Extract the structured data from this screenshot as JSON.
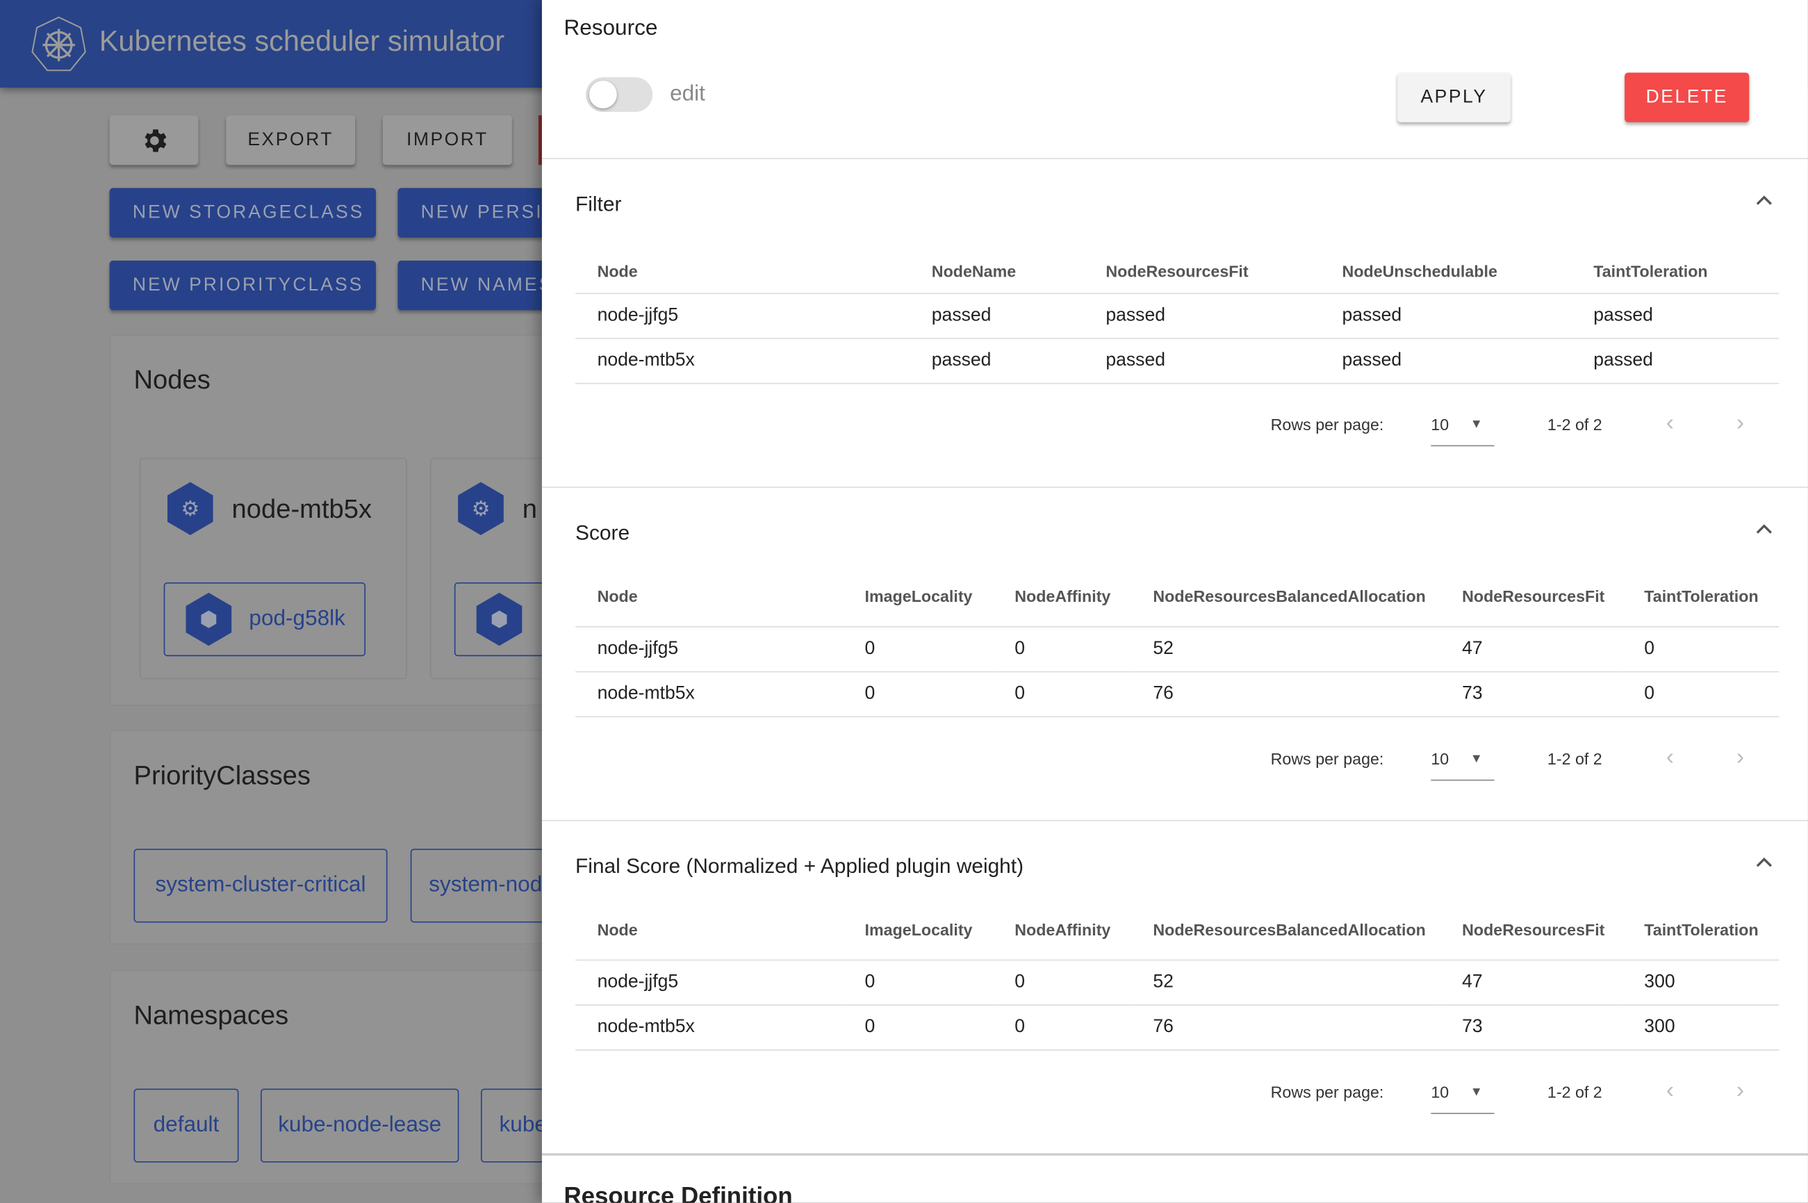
{
  "app": {
    "title": "Kubernetes scheduler simulator"
  },
  "toolbar": {
    "settings_icon": "gear-icon",
    "export": "EXPORT",
    "import": "IMPORT"
  },
  "create_buttons": [
    "NEW STORAGECLASS",
    "NEW PERSIS",
    "NEW PRIORITYCLASS",
    "NEW NAMES"
  ],
  "nodes": {
    "title": "Nodes",
    "items": [
      {
        "name": "node-mtb5x",
        "pods": [
          "pod-g58lk"
        ]
      },
      {
        "name": "n",
        "pods": [
          ""
        ]
      }
    ]
  },
  "priority_classes": {
    "title": "PriorityClasses",
    "items": [
      "system-cluster-critical",
      "system-nod"
    ]
  },
  "namespaces": {
    "title": "Namespaces",
    "items": [
      "default",
      "kube-node-lease",
      "kube"
    ]
  },
  "drawer": {
    "title": "Resource",
    "edit_label": "edit",
    "edit_enabled": false,
    "apply": "APPLY",
    "delete": "DELETE",
    "delete_color": "#f44a4a",
    "sections": [
      {
        "title": "Filter",
        "headers": [
          "Node",
          "NodeName",
          "NodeResourcesFit",
          "NodeUnschedulable",
          "TaintToleration"
        ],
        "rows": [
          [
            "node-jjfg5",
            "passed",
            "passed",
            "passed",
            "passed"
          ],
          [
            "node-mtb5x",
            "passed",
            "passed",
            "passed",
            "passed"
          ]
        ],
        "rows_per_page_label": "Rows per page:",
        "rows_per_page": "10",
        "range": "1-2 of 2"
      },
      {
        "title": "Score",
        "headers": [
          "Node",
          "ImageLocality",
          "NodeAffinity",
          "NodeResourcesBalancedAllocation",
          "NodeResourcesFit",
          "TaintToleration"
        ],
        "rows": [
          [
            "node-jjfg5",
            "0",
            "0",
            "52",
            "47",
            "0"
          ],
          [
            "node-mtb5x",
            "0",
            "0",
            "76",
            "73",
            "0"
          ]
        ],
        "rows_per_page_label": "Rows per page:",
        "rows_per_page": "10",
        "range": "1-2 of 2"
      },
      {
        "title": "Final Score (Normalized + Applied plugin weight)",
        "headers": [
          "Node",
          "ImageLocality",
          "NodeAffinity",
          "NodeResourcesBalancedAllocation",
          "NodeResourcesFit",
          "TaintToleration"
        ],
        "rows": [
          [
            "node-jjfg5",
            "0",
            "0",
            "52",
            "47",
            "300"
          ],
          [
            "node-mtb5x",
            "0",
            "0",
            "76",
            "73",
            "300"
          ]
        ],
        "rows_per_page_label": "Rows per page:",
        "rows_per_page": "10",
        "range": "1-2 of 2"
      }
    ],
    "definition_title": "Resource Definition"
  }
}
